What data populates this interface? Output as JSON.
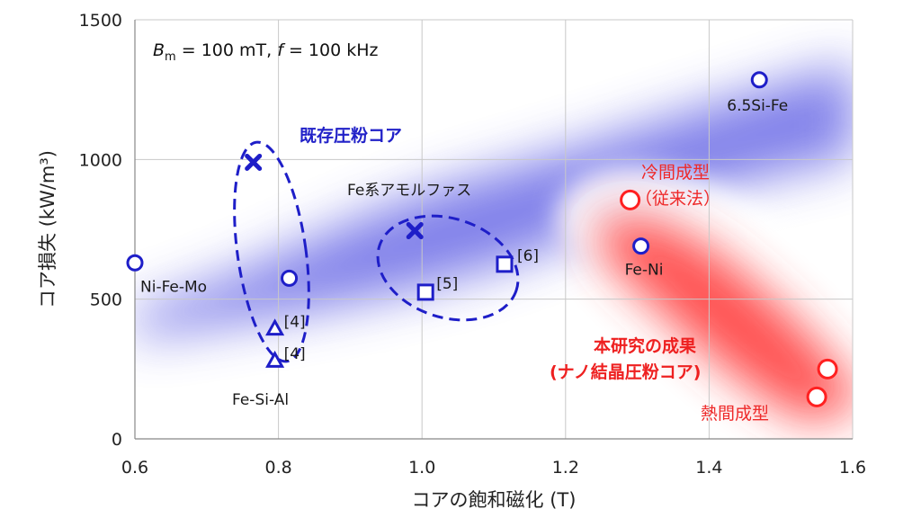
{
  "chart_data": {
    "type": "scatter",
    "xlabel": "コアの飽和磁化 (T)",
    "ylabel": "コア損失 (kW/m³)",
    "xlim": [
      0.6,
      1.6
    ],
    "ylim": [
      0,
      1500
    ],
    "xticks": [
      0.6,
      0.8,
      1.0,
      1.2,
      1.4,
      1.6
    ],
    "xtick_labels": [
      "0.6",
      "0.8",
      "1.0",
      "1.2",
      "1.4",
      "1.6"
    ],
    "yticks": [
      0,
      500,
      1000,
      1500
    ],
    "ytick_labels": [
      "0",
      "500",
      "1000",
      "1500"
    ],
    "grid": true,
    "condition": {
      "B": "B",
      "B_sub": "m",
      "B_value": " = 100 mT, ",
      "f": "f",
      "f_value": " = 100 kHz"
    },
    "series": [
      {
        "name": "circle-blue",
        "marker": "circle",
        "color": "#1e1ec8",
        "points": [
          {
            "x": 0.6,
            "y": 630,
            "label": "Ni-Fe-Mo"
          },
          {
            "x": 0.815,
            "y": 575,
            "label": ""
          },
          {
            "x": 1.305,
            "y": 690,
            "label": "Fe-Ni"
          },
          {
            "x": 1.47,
            "y": 1285,
            "label": "6.5Si-Fe"
          }
        ]
      },
      {
        "name": "cross-blue",
        "marker": "cross",
        "color": "#1e1ec8",
        "points": [
          {
            "x": 0.765,
            "y": 990,
            "label": ""
          },
          {
            "x": 0.99,
            "y": 745,
            "label": ""
          }
        ]
      },
      {
        "name": "triangle-blue",
        "marker": "triangle",
        "color": "#1e1ec8",
        "points": [
          {
            "x": 0.795,
            "y": 395,
            "label": "[4]"
          },
          {
            "x": 0.795,
            "y": 280,
            "label": "[4]"
          }
        ]
      },
      {
        "name": "square-blue",
        "marker": "square",
        "color": "#1e1ec8",
        "points": [
          {
            "x": 1.005,
            "y": 525,
            "label": "[5]"
          },
          {
            "x": 1.115,
            "y": 625,
            "label": "[6]"
          }
        ]
      },
      {
        "name": "circle-red",
        "marker": "circle",
        "color": "#ff2020",
        "points": [
          {
            "x": 1.29,
            "y": 855,
            "label": ""
          },
          {
            "x": 1.565,
            "y": 250,
            "label": ""
          },
          {
            "x": 1.55,
            "y": 150,
            "label": ""
          }
        ]
      }
    ],
    "annotations": {
      "fe_si_al": "Fe-Si-Al",
      "existing": "既存圧粉コア",
      "amorphous": "Fe系アモルファス",
      "cold_1": "冷間成型",
      "cold_2": "（従来法）",
      "result_1": "本研究の成果",
      "result_2": "(ナノ結晶圧粉コア)",
      "hot": "熱間成型"
    },
    "colors": {
      "blue_marker": "#1e1ec8",
      "red_marker": "#ff2020",
      "blue_text": "#2121c8",
      "red_text": "#ee2a2a",
      "blue_band": "#6a6ae6",
      "red_band": "#ff3c3c",
      "grid": "#c8c8c8",
      "axis": "#888888"
    }
  }
}
